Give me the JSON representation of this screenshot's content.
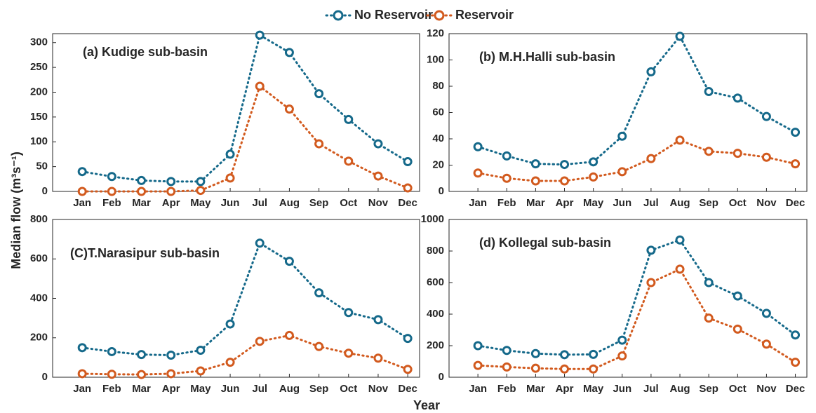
{
  "figure": {
    "xlabel": "Year",
    "ylabel": "Median flow (m³s⁻¹)"
  },
  "chart_data": [
    {
      "type": "line",
      "title": "(a) Kudige sub-basin",
      "categories": [
        "Jan",
        "Feb",
        "Mar",
        "Apr",
        "May",
        "Jun",
        "Jul",
        "Aug",
        "Sep",
        "Oct",
        "Nov",
        "Dec"
      ],
      "series": [
        {
          "name": "No Reservoir",
          "color": "#15698a",
          "values": [
            40,
            30,
            22,
            20,
            20,
            75,
            315,
            280,
            197,
            145,
            96,
            60
          ]
        },
        {
          "name": "Reservoir",
          "color": "#d25a1e",
          "values": [
            0,
            0,
            0,
            0,
            2,
            27,
            212,
            166,
            96,
            61,
            31,
            7
          ]
        }
      ],
      "ylim": [
        0,
        318
      ],
      "yticks": [
        0,
        50,
        100,
        150,
        200,
        250,
        300
      ]
    },
    {
      "type": "line",
      "title": "(b) M.H.Halli sub-basin",
      "categories": [
        "Jan",
        "Feb",
        "Mar",
        "Apr",
        "May",
        "Jun",
        "Jul",
        "Aug",
        "Sep",
        "Oct",
        "Nov",
        "Dec"
      ],
      "series": [
        {
          "name": "No Reservoir",
          "color": "#15698a",
          "values": [
            34,
            27,
            21,
            20.5,
            22.5,
            42,
            91,
            118,
            76,
            71,
            57,
            45
          ]
        },
        {
          "name": "Reservoir",
          "color": "#d25a1e",
          "values": [
            14,
            10,
            8,
            8,
            11,
            15,
            25,
            39,
            30.5,
            29,
            26,
            21
          ]
        }
      ],
      "ylim": [
        0,
        120
      ],
      "yticks": [
        0,
        20,
        40,
        60,
        80,
        100,
        120
      ]
    },
    {
      "type": "line",
      "title": "(C)T.Narasipur sub-basin",
      "categories": [
        "Jan",
        "Feb",
        "Mar",
        "Apr",
        "May",
        "Jun",
        "Jul",
        "Aug",
        "Sep",
        "Oct",
        "Nov",
        "Dec"
      ],
      "series": [
        {
          "name": "No Reservoir",
          "color": "#15698a",
          "values": [
            150,
            130,
            115,
            112,
            137,
            270,
            680,
            588,
            428,
            328,
            292,
            197
          ]
        },
        {
          "name": "Reservoir",
          "color": "#d25a1e",
          "values": [
            18,
            15,
            14,
            18,
            32,
            76,
            182,
            212,
            156,
            122,
            97,
            40
          ]
        }
      ],
      "ylim": [
        0,
        800
      ],
      "yticks": [
        0,
        200,
        400,
        600,
        800
      ]
    },
    {
      "type": "line",
      "title": "(d) Kollegal sub-basin",
      "categories": [
        "Jan",
        "Feb",
        "Mar",
        "Apr",
        "May",
        "Jun",
        "Jul",
        "Aug",
        "Sep",
        "Oct",
        "Nov",
        "Dec"
      ],
      "series": [
        {
          "name": "No Reservoir",
          "color": "#15698a",
          "values": [
            200,
            170,
            150,
            143,
            145,
            235,
            805,
            870,
            600,
            515,
            405,
            268
          ]
        },
        {
          "name": "Reservoir",
          "color": "#d25a1e",
          "values": [
            75,
            65,
            57,
            52,
            52,
            135,
            600,
            685,
            375,
            305,
            210,
            95
          ]
        }
      ],
      "ylim": [
        0,
        1000
      ],
      "yticks": [
        0,
        200,
        400,
        600,
        800,
        1000
      ]
    }
  ]
}
